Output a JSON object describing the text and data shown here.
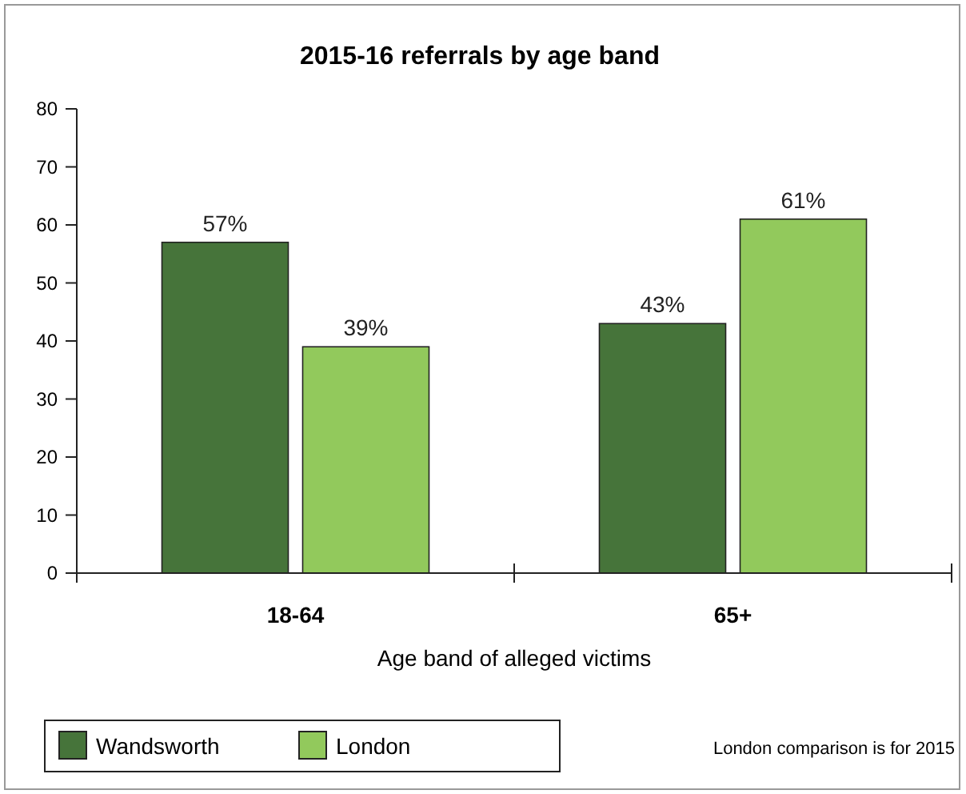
{
  "chart_data": {
    "type": "bar",
    "title": "2015-16 referrals by age band",
    "xlabel": "Age band of alleged victims",
    "categories": [
      "18-64",
      "65+"
    ],
    "series": [
      {
        "name": "Wandsworth",
        "color": "#46743a",
        "values": [
          57,
          43
        ],
        "value_labels": [
          "57%",
          "43%"
        ]
      },
      {
        "name": "London",
        "color": "#92c95c",
        "values": [
          39,
          61
        ],
        "value_labels": [
          "39%",
          "61%"
        ]
      }
    ],
    "ylim": [
      0,
      80
    ],
    "yticks": [
      0,
      10,
      20,
      30,
      40,
      50,
      60,
      70,
      80
    ],
    "grid": false,
    "legend": "bottom",
    "annotations": [
      "London comparison is for 2015"
    ]
  }
}
